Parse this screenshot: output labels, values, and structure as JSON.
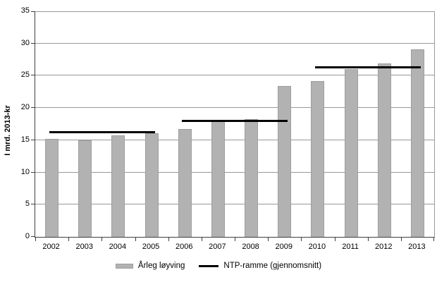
{
  "chart_data": {
    "type": "bar",
    "title": "",
    "xlabel": "",
    "ylabel": "I mrd. 2013-kr",
    "categories": [
      "2002",
      "2003",
      "2004",
      "2005",
      "2006",
      "2007",
      "2008",
      "2009",
      "2010",
      "2011",
      "2012",
      "2013"
    ],
    "series": [
      {
        "name": "Årleg løyving",
        "values": [
          15.2,
          15.0,
          15.7,
          16.1,
          16.7,
          17.9,
          18.3,
          23.4,
          24.2,
          26.0,
          26.9,
          29.1
        ]
      }
    ],
    "ntp_series_name": "NTP-ramme (gjennomsnitt)",
    "ntp_lines": [
      {
        "value": 16.2,
        "from": "2002",
        "to": "2005"
      },
      {
        "value": 18.0,
        "from": "2006",
        "to": "2009"
      },
      {
        "value": 26.3,
        "from": "2010",
        "to": "2013"
      }
    ],
    "ylim": [
      0,
      35
    ],
    "yticks": [
      0,
      5,
      10,
      15,
      20,
      25,
      30,
      35
    ],
    "grid": "horizontal",
    "legend_position": "bottom",
    "legend": [
      "Årleg løyving",
      "NTP-ramme (gjennomsnitt)"
    ]
  },
  "colors": {
    "background": "#ffffff",
    "bar_fill": "#b2b2b2",
    "bar_border": "#9e9e9e",
    "gridline": "#999999",
    "axis": "#3f3f3f",
    "ntp_line": "#000000",
    "text": "#000000"
  }
}
